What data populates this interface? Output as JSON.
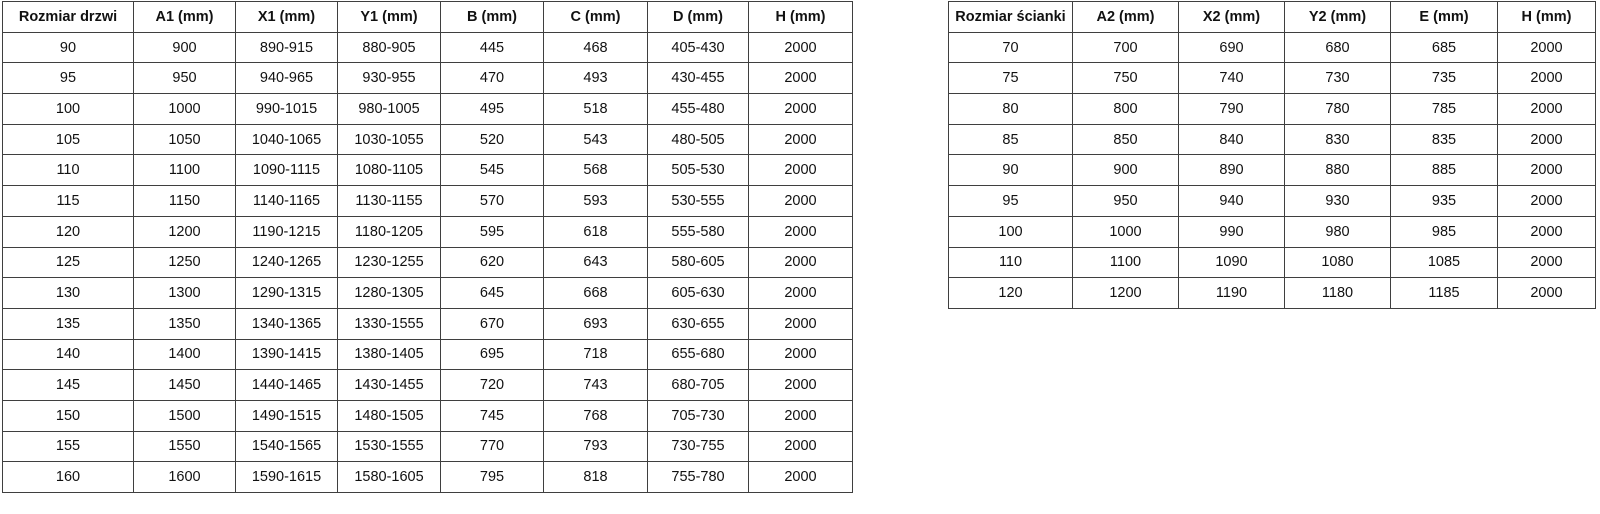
{
  "colors": {
    "table-border": "#3f3f3f",
    "text": "#111111",
    "background": "#ffffff"
  },
  "tables": [
    {
      "name": "door-size-table",
      "headers": [
        "Rozmiar drzwi",
        "A1 (mm)",
        "X1 (mm)",
        "Y1 (mm)",
        "B (mm)",
        "C (mm)",
        "D (mm)",
        "H (mm)"
      ],
      "rows": [
        [
          "90",
          "900",
          "890-915",
          "880-905",
          "445",
          "468",
          "405-430",
          "2000"
        ],
        [
          "95",
          "950",
          "940-965",
          "930-955",
          "470",
          "493",
          "430-455",
          "2000"
        ],
        [
          "100",
          "1000",
          "990-1015",
          "980-1005",
          "495",
          "518",
          "455-480",
          "2000"
        ],
        [
          "105",
          "1050",
          "1040-1065",
          "1030-1055",
          "520",
          "543",
          "480-505",
          "2000"
        ],
        [
          "110",
          "1100",
          "1090-1115",
          "1080-1105",
          "545",
          "568",
          "505-530",
          "2000"
        ],
        [
          "115",
          "1150",
          "1140-1165",
          "1130-1155",
          "570",
          "593",
          "530-555",
          "2000"
        ],
        [
          "120",
          "1200",
          "1190-1215",
          "1180-1205",
          "595",
          "618",
          "555-580",
          "2000"
        ],
        [
          "125",
          "1250",
          "1240-1265",
          "1230-1255",
          "620",
          "643",
          "580-605",
          "2000"
        ],
        [
          "130",
          "1300",
          "1290-1315",
          "1280-1305",
          "645",
          "668",
          "605-630",
          "2000"
        ],
        [
          "135",
          "1350",
          "1340-1365",
          "1330-1555",
          "670",
          "693",
          "630-655",
          "2000"
        ],
        [
          "140",
          "1400",
          "1390-1415",
          "1380-1405",
          "695",
          "718",
          "655-680",
          "2000"
        ],
        [
          "145",
          "1450",
          "1440-1465",
          "1430-1455",
          "720",
          "743",
          "680-705",
          "2000"
        ],
        [
          "150",
          "1500",
          "1490-1515",
          "1480-1505",
          "745",
          "768",
          "705-730",
          "2000"
        ],
        [
          "155",
          "1550",
          "1540-1565",
          "1530-1555",
          "770",
          "793",
          "730-755",
          "2000"
        ],
        [
          "160",
          "1600",
          "1590-1615",
          "1580-1605",
          "795",
          "818",
          "755-780",
          "2000"
        ]
      ]
    },
    {
      "name": "wall-size-table",
      "headers": [
        "Rozmiar ścianki",
        "A2 (mm)",
        "X2 (mm)",
        "Y2 (mm)",
        "E (mm)",
        "H (mm)"
      ],
      "rows": [
        [
          "70",
          "700",
          "690",
          "680",
          "685",
          "2000"
        ],
        [
          "75",
          "750",
          "740",
          "730",
          "735",
          "2000"
        ],
        [
          "80",
          "800",
          "790",
          "780",
          "785",
          "2000"
        ],
        [
          "85",
          "850",
          "840",
          "830",
          "835",
          "2000"
        ],
        [
          "90",
          "900",
          "890",
          "880",
          "885",
          "2000"
        ],
        [
          "95",
          "950",
          "940",
          "930",
          "935",
          "2000"
        ],
        [
          "100",
          "1000",
          "990",
          "980",
          "985",
          "2000"
        ],
        [
          "110",
          "1100",
          "1090",
          "1080",
          "1085",
          "2000"
        ],
        [
          "120",
          "1200",
          "1190",
          "1180",
          "1185",
          "2000"
        ]
      ]
    }
  ]
}
